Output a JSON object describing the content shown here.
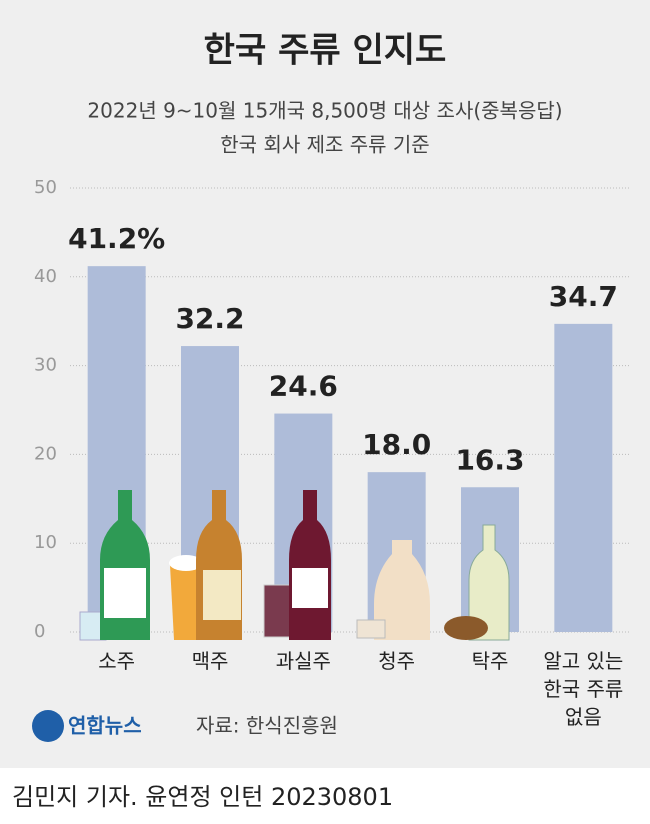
{
  "chart_data": {
    "type": "bar",
    "title": "한국 주류 인지도",
    "subtitle": [
      "2022년 9~10월 15개국 8,500명 대상 조사(중복응답)",
      "한국 회사 제조 주류 기준"
    ],
    "categories": [
      "소주",
      "맥주",
      "과실주",
      "청주",
      "탁주",
      "알고 있는\n한국 주류\n없음"
    ],
    "values": [
      41.2,
      32.2,
      24.6,
      18.0,
      16.3,
      34.7
    ],
    "value_labels": [
      "41.2%",
      "32.2",
      "24.6",
      "18.0",
      "16.3",
      "34.7"
    ],
    "color": "#aebcd9",
    "ylim": [
      0,
      50
    ],
    "yticks": [
      0,
      10,
      20,
      30,
      40,
      50
    ],
    "grid": true,
    "logo": "연합뉴스",
    "source": "자료: 한식진흥원",
    "credit": "김민지 기자. 윤연정 인턴  20230801"
  }
}
